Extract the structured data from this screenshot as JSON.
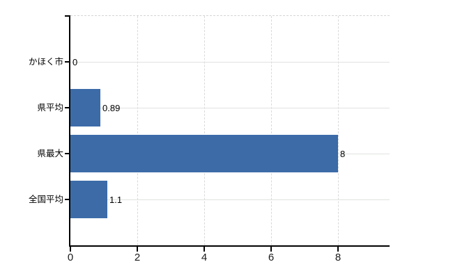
{
  "chart_data": {
    "type": "bar",
    "orientation": "horizontal",
    "title": "",
    "xlabel": "",
    "ylabel": "",
    "categories": [
      "かほく市",
      "県平均",
      "県最大",
      "全国平均"
    ],
    "values": [
      0,
      0.89,
      8,
      1.1
    ],
    "value_labels": [
      "0",
      "0.89",
      "8",
      "1.1"
    ],
    "x_ticks": [
      0,
      2,
      4,
      6,
      8
    ],
    "x_tick_labels": [
      "0",
      "2",
      "4",
      "6",
      "8"
    ],
    "xlim": [
      0,
      9.54
    ],
    "grid": true,
    "legend": false,
    "colors": {
      "bar": "#3c6ba8",
      "axis": "#000000",
      "vgrid": "#d9d9d9",
      "hgrid": "#dfe3df",
      "text": "#000000"
    }
  }
}
